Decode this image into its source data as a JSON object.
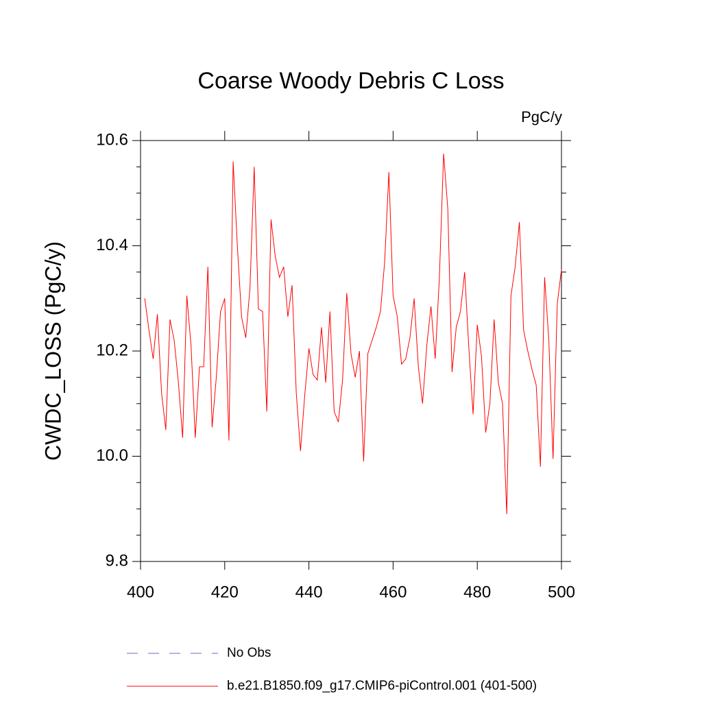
{
  "chart_data": {
    "type": "line",
    "title": "Coarse Woody Debris C Loss",
    "units": "PgC/y",
    "y_label": "CWDC_LOSS  (PgC/y)",
    "x": [
      401,
      402,
      403,
      404,
      405,
      406,
      407,
      408,
      409,
      410,
      411,
      412,
      413,
      414,
      415,
      416,
      417,
      418,
      419,
      420,
      421,
      422,
      423,
      424,
      425,
      426,
      427,
      428,
      429,
      430,
      431,
      432,
      433,
      434,
      435,
      436,
      437,
      438,
      439,
      440,
      441,
      442,
      443,
      444,
      445,
      446,
      447,
      448,
      449,
      450,
      451,
      452,
      453,
      454,
      455,
      456,
      457,
      458,
      459,
      460,
      461,
      462,
      463,
      464,
      465,
      466,
      467,
      468,
      469,
      470,
      471,
      472,
      473,
      474,
      475,
      476,
      477,
      478,
      479,
      480,
      481,
      482,
      483,
      484,
      485,
      486,
      487,
      488,
      489,
      490,
      491,
      492,
      493,
      494,
      495,
      496,
      497,
      498,
      499,
      500
    ],
    "series": [
      {
        "name": "No Obs",
        "color": "#6a6acd",
        "dashed": true,
        "values": [
          null,
          null,
          null,
          null,
          null,
          null,
          null,
          null,
          null,
          null,
          null,
          null,
          null,
          null,
          null,
          null,
          null,
          null,
          null,
          null,
          null,
          null,
          null,
          null,
          null,
          null,
          null,
          null,
          null,
          null,
          null,
          null,
          null,
          null,
          null,
          null,
          null,
          null,
          null,
          null,
          null,
          null,
          null,
          null,
          null,
          null,
          null,
          null,
          null,
          null,
          null,
          null,
          null,
          null,
          null,
          null,
          null,
          null,
          null,
          null,
          null,
          null,
          null,
          null,
          null,
          null,
          null,
          null,
          null,
          null,
          null,
          null,
          null,
          null,
          null,
          null,
          null,
          null,
          null,
          null,
          null,
          null,
          null,
          null,
          null,
          null,
          null,
          null,
          null,
          null,
          null,
          null,
          null,
          null,
          null,
          null,
          null,
          null,
          null,
          null
        ]
      },
      {
        "name": "b.e21.B1850.f09_g17.CMIP6-piControl.001 (401-500)",
        "color": "#ff0000",
        "dashed": false,
        "values": [
          10.3,
          10.24,
          10.185,
          10.27,
          10.12,
          10.05,
          10.26,
          10.22,
          10.14,
          10.035,
          10.305,
          10.21,
          10.035,
          10.17,
          10.17,
          10.36,
          10.055,
          10.15,
          10.275,
          10.3,
          10.03,
          10.56,
          10.4,
          10.265,
          10.225,
          10.32,
          10.55,
          10.28,
          10.275,
          10.085,
          10.45,
          10.38,
          10.34,
          10.36,
          10.265,
          10.325,
          10.12,
          10.01,
          10.115,
          10.205,
          10.155,
          10.145,
          10.245,
          10.14,
          10.275,
          10.085,
          10.065,
          10.145,
          10.31,
          10.195,
          10.15,
          10.2,
          9.99,
          10.195,
          10.22,
          10.245,
          10.275,
          10.37,
          10.54,
          10.305,
          10.265,
          10.175,
          10.185,
          10.225,
          10.3,
          10.17,
          10.1,
          10.21,
          10.285,
          10.185,
          10.34,
          10.575,
          10.47,
          10.16,
          10.245,
          10.275,
          10.35,
          10.205,
          10.08,
          10.25,
          10.19,
          10.045,
          10.1,
          10.26,
          10.14,
          10.1,
          9.89,
          10.305,
          10.36,
          10.445,
          10.24,
          10.2,
          10.165,
          10.135,
          9.98,
          10.34,
          10.22,
          9.995,
          10.29,
          10.355
        ]
      }
    ],
    "xlim": [
      400,
      500
    ],
    "xticks": [
      400,
      420,
      440,
      460,
      480,
      500
    ],
    "ylim": [
      9.8,
      10.6
    ],
    "yticks": [
      9.8,
      {
        "value": 10,
        "label": "10.0"
      },
      10.2,
      10.4,
      10.6
    ],
    "yminorticks": [
      9.85,
      9.9,
      9.95,
      10.05,
      10.1,
      10.15,
      10.25,
      10.3,
      10.35,
      10.45,
      10.5,
      10.55
    ]
  }
}
